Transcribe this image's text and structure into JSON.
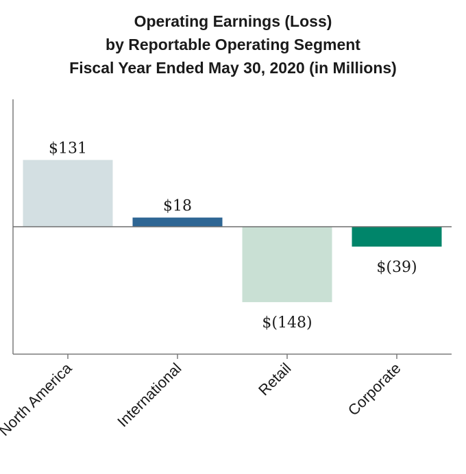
{
  "chart_data": {
    "type": "bar",
    "title": "Operating Earnings (Loss) by Reportable Operating Segment Fiscal Year Ended May 30, 2020 (in Millions)",
    "title_lines": [
      "Operating Earnings (Loss)",
      "by Reportable Operating Segment",
      "Fiscal Year Ended May 30, 2020 (in Millions)"
    ],
    "categories": [
      "North America",
      "International",
      "Retail",
      "Corporate"
    ],
    "values": [
      131,
      18,
      -148,
      -39
    ],
    "data_labels": [
      "$131",
      "$18",
      "$(148)",
      "$(39)"
    ],
    "bar_colors": [
      "#d3dfe2",
      "#2e6694",
      "#c9e0d4",
      "#00856a"
    ],
    "xlabel": "",
    "ylabel": "",
    "ylim": [
      -250,
      250
    ],
    "grid": false,
    "legend": "none"
  }
}
